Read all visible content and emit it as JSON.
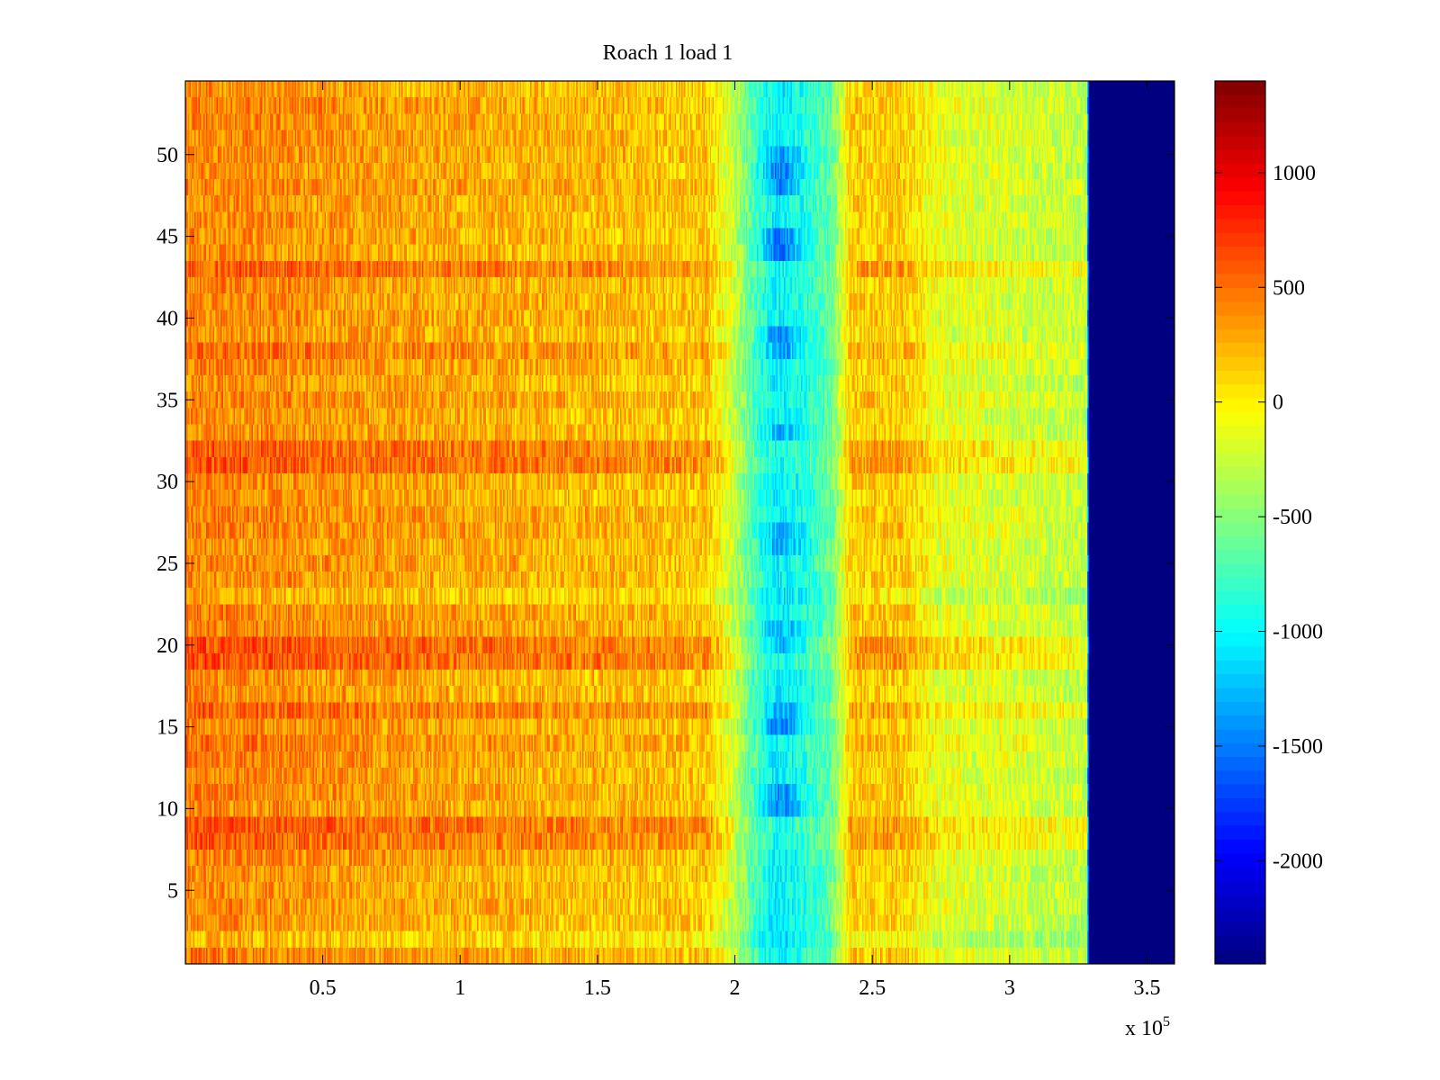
{
  "chart_data": {
    "type": "heatmap",
    "title": "Roach 1 load 1",
    "xlabel": "",
    "ylabel": "",
    "x_range": [
      0,
      360000
    ],
    "y_range": [
      0.5,
      54.5
    ],
    "x_exponent_label": {
      "prefix": "x 10",
      "exponent": "5"
    },
    "x_ticks": [
      0.5,
      1,
      1.5,
      2,
      2.5,
      3,
      3.5
    ],
    "x_tick_labels": [
      "0.5",
      "1",
      "1.5",
      "2",
      "2.5",
      "3",
      "3.5"
    ],
    "y_ticks": [
      5,
      10,
      15,
      20,
      25,
      30,
      35,
      40,
      45,
      50
    ],
    "y_tick_labels": [
      "5",
      "10",
      "15",
      "20",
      "25",
      "30",
      "35",
      "40",
      "45",
      "50"
    ],
    "rows": 54,
    "colormap": "jet",
    "color_range": [
      -2450,
      1400
    ],
    "colorbar": {
      "ticks": [
        1000,
        500,
        0,
        -500,
        -1000,
        -1500,
        -2000
      ],
      "tick_labels": [
        "1000",
        "500",
        "0",
        "-500",
        "-1000",
        "-1500",
        "-2000"
      ]
    },
    "column_profile": [
      {
        "x": 0,
        "mean": 420
      },
      {
        "x": 30000,
        "mean": 380
      },
      {
        "x": 90000,
        "mean": 280
      },
      {
        "x": 150000,
        "mean": 220
      },
      {
        "x": 190000,
        "mean": 150
      },
      {
        "x": 200000,
        "mean": -300
      },
      {
        "x": 207000,
        "mean": -750
      },
      {
        "x": 215000,
        "mean": -1050
      },
      {
        "x": 225000,
        "mean": -900
      },
      {
        "x": 235000,
        "mean": -650
      },
      {
        "x": 242000,
        "mean": 120
      },
      {
        "x": 260000,
        "mean": 150
      },
      {
        "x": 275000,
        "mean": -150
      },
      {
        "x": 300000,
        "mean": -200
      },
      {
        "x": 328000,
        "mean": -300
      },
      {
        "x": 329000,
        "mean": -2450
      },
      {
        "x": 360000,
        "mean": -2450
      }
    ],
    "band_dips": [
      {
        "row": 10,
        "amount": -450
      },
      {
        "row": 11,
        "amount": -400
      },
      {
        "row": 15,
        "amount": -500
      },
      {
        "row": 16,
        "amount": -450
      },
      {
        "row": 20,
        "amount": -350
      },
      {
        "row": 21,
        "amount": -300
      },
      {
        "row": 26,
        "amount": -350
      },
      {
        "row": 27,
        "amount": -300
      },
      {
        "row": 33,
        "amount": -250
      },
      {
        "row": 38,
        "amount": -400
      },
      {
        "row": 39,
        "amount": -450
      },
      {
        "row": 44,
        "amount": -500
      },
      {
        "row": 45,
        "amount": -450
      },
      {
        "row": 48,
        "amount": -400
      },
      {
        "row": 49,
        "amount": -450
      },
      {
        "row": 50,
        "amount": -350
      }
    ],
    "row_offsets": [
      {
        "row": 8,
        "offset": 200
      },
      {
        "row": 9,
        "offset": 180
      },
      {
        "row": 14,
        "offset": 120
      },
      {
        "row": 16,
        "offset": 150
      },
      {
        "row": 19,
        "offset": 220
      },
      {
        "row": 20,
        "offset": 250
      },
      {
        "row": 31,
        "offset": 180
      },
      {
        "row": 32,
        "offset": 200
      },
      {
        "row": 38,
        "offset": 150
      },
      {
        "row": 43,
        "offset": 160
      },
      {
        "row": 2,
        "offset": -150
      },
      {
        "row": 23,
        "offset": -120
      }
    ]
  }
}
